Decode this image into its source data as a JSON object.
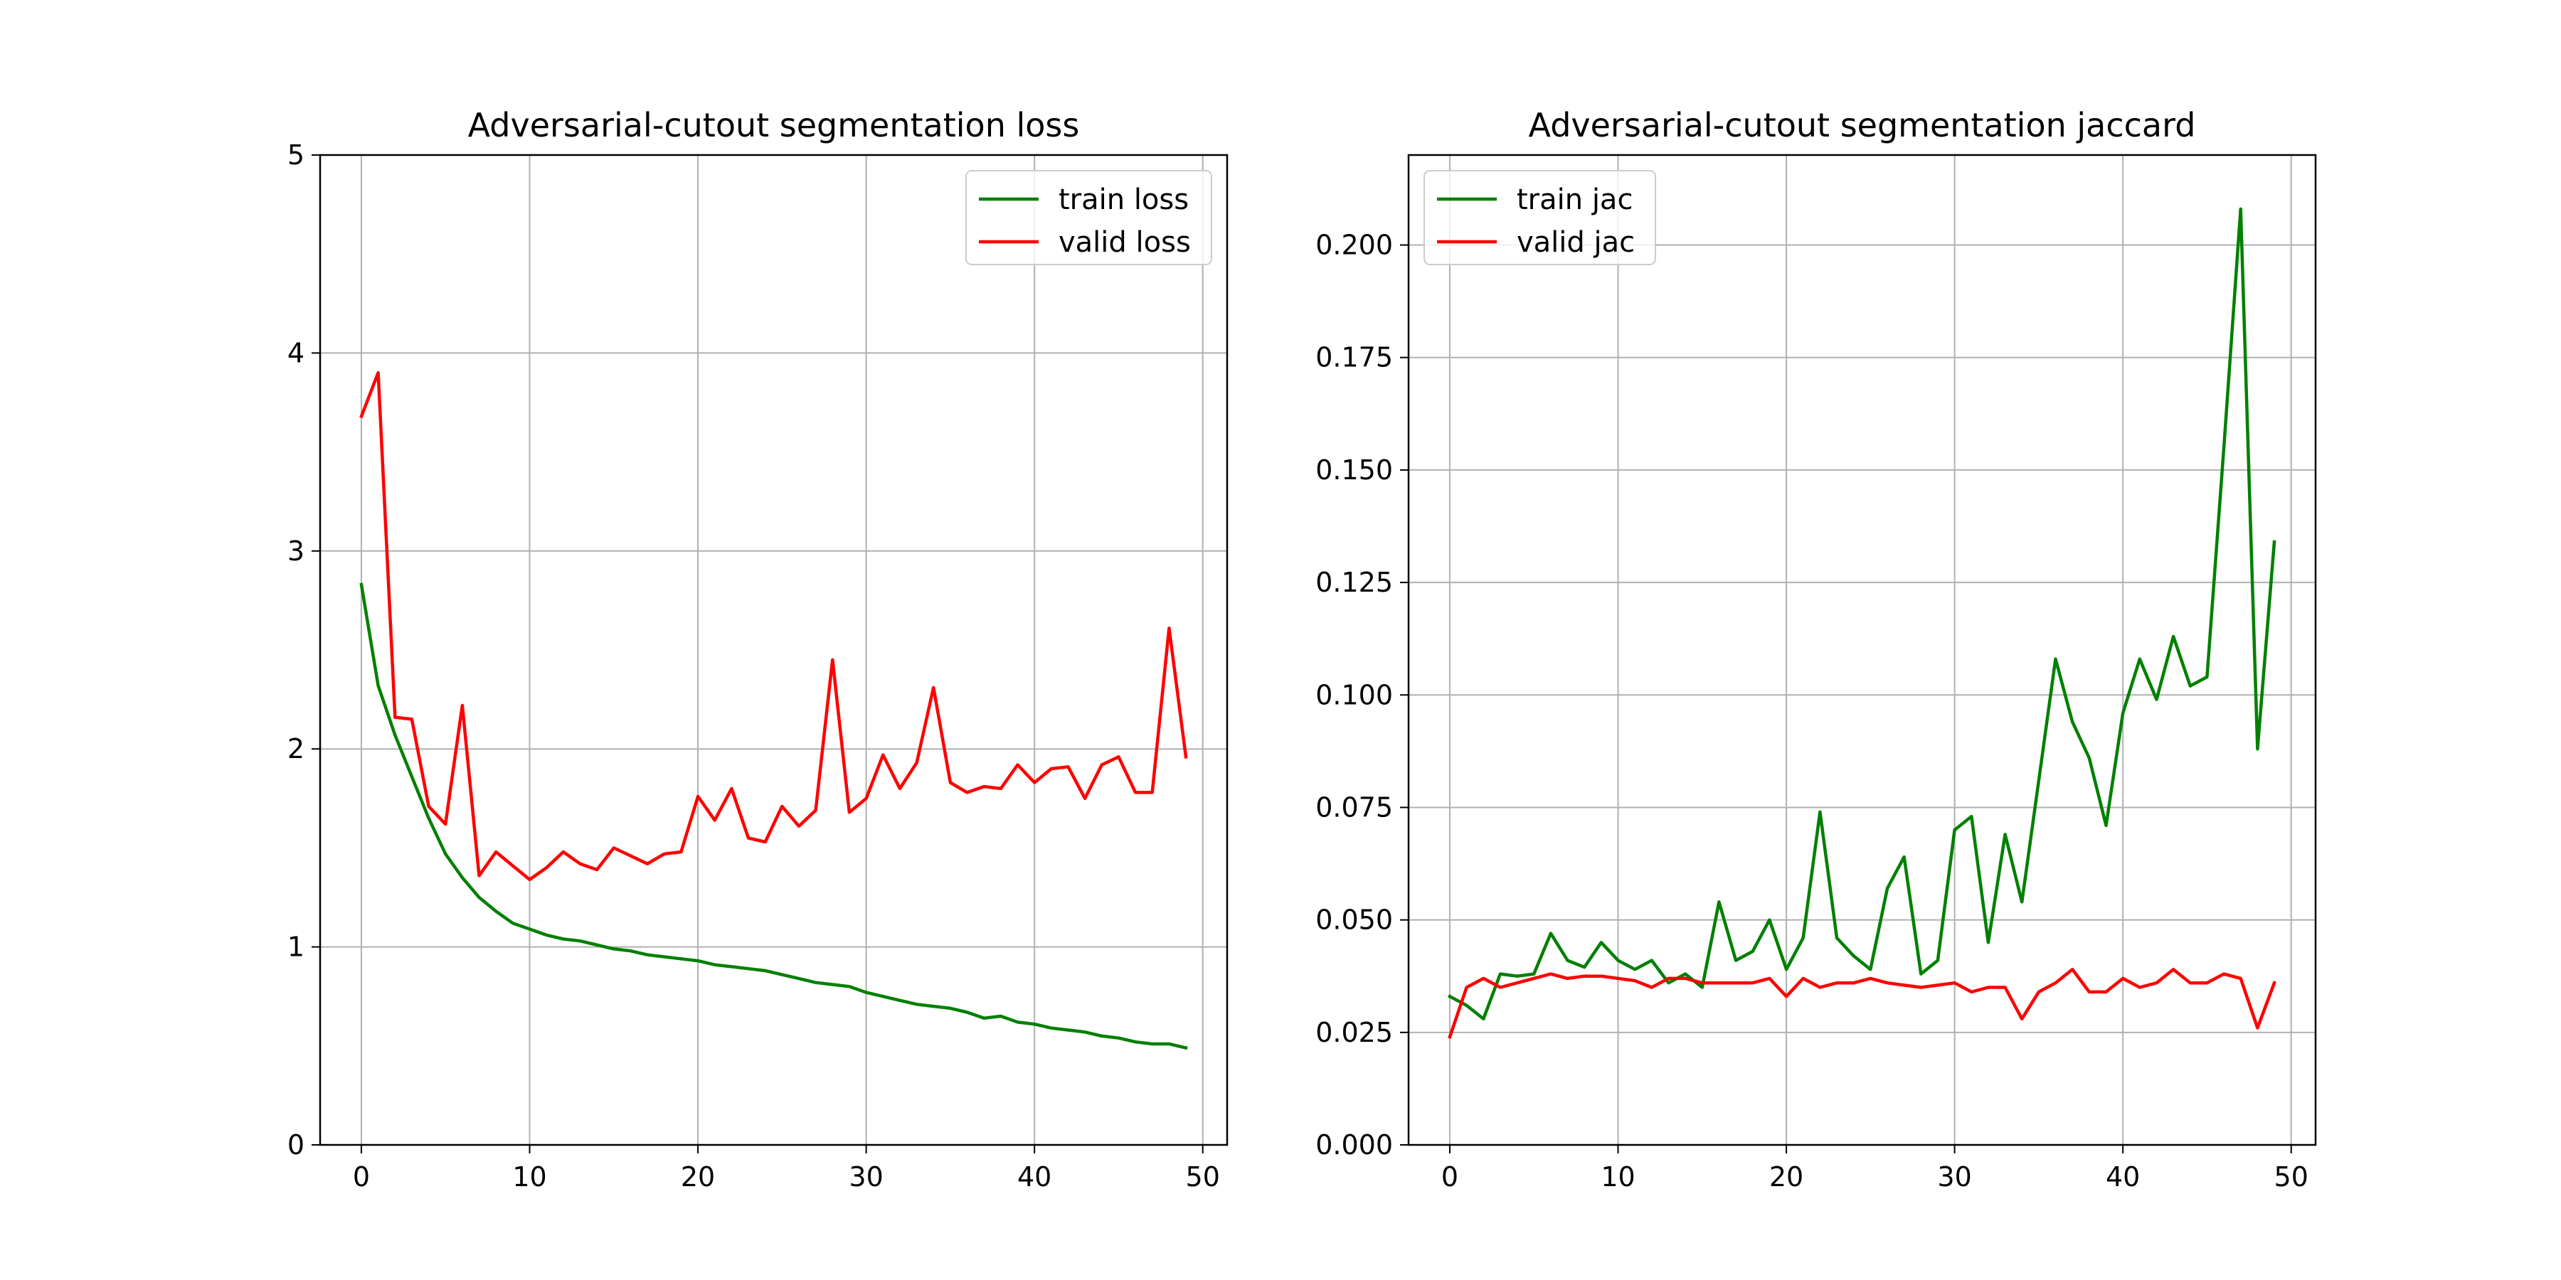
{
  "chart_data": [
    {
      "type": "line",
      "title": "Adversarial-cutout segmentation loss",
      "xlabel": "",
      "ylabel": "",
      "xlim": [
        -2.45,
        51.45
      ],
      "ylim": [
        0,
        5
      ],
      "xticks": [
        0,
        10,
        20,
        30,
        40,
        50
      ],
      "yticks": [
        0,
        1,
        2,
        3,
        4,
        5
      ],
      "ytick_labels": [
        "0",
        "1",
        "2",
        "3",
        "4",
        "5"
      ],
      "grid": true,
      "legend_position": "top-right",
      "series": [
        {
          "name": "train loss",
          "color": "#008000",
          "x": [
            0,
            1,
            2,
            3,
            4,
            5,
            6,
            7,
            8,
            9,
            10,
            11,
            12,
            13,
            14,
            15,
            16,
            17,
            18,
            19,
            20,
            21,
            22,
            23,
            24,
            25,
            26,
            27,
            28,
            29,
            30,
            31,
            32,
            33,
            34,
            35,
            36,
            37,
            38,
            39,
            40,
            41,
            42,
            43,
            44,
            45,
            46,
            47,
            48,
            49
          ],
          "y": [
            2.83,
            2.32,
            2.07,
            1.86,
            1.65,
            1.47,
            1.35,
            1.25,
            1.18,
            1.12,
            1.09,
            1.06,
            1.04,
            1.03,
            1.01,
            0.99,
            0.98,
            0.96,
            0.95,
            0.94,
            0.93,
            0.91,
            0.9,
            0.89,
            0.88,
            0.86,
            0.84,
            0.82,
            0.81,
            0.8,
            0.77,
            0.75,
            0.73,
            0.71,
            0.7,
            0.69,
            0.67,
            0.64,
            0.65,
            0.62,
            0.61,
            0.59,
            0.58,
            0.57,
            0.55,
            0.54,
            0.52,
            0.51,
            0.51,
            0.49
          ]
        },
        {
          "name": "valid loss",
          "color": "#ff0000",
          "x": [
            0,
            1,
            2,
            3,
            4,
            5,
            6,
            7,
            8,
            9,
            10,
            11,
            12,
            13,
            14,
            15,
            16,
            17,
            18,
            19,
            20,
            21,
            22,
            23,
            24,
            25,
            26,
            27,
            28,
            29,
            30,
            31,
            32,
            33,
            34,
            35,
            36,
            37,
            38,
            39,
            40,
            41,
            42,
            43,
            44,
            45,
            46,
            47,
            48,
            49
          ],
          "y": [
            3.68,
            3.9,
            2.16,
            2.15,
            1.71,
            1.62,
            2.22,
            1.36,
            1.48,
            1.41,
            1.34,
            1.4,
            1.48,
            1.42,
            1.39,
            1.5,
            1.46,
            1.42,
            1.47,
            1.48,
            1.76,
            1.64,
            1.8,
            1.55,
            1.53,
            1.71,
            1.61,
            1.69,
            2.45,
            1.68,
            1.75,
            1.97,
            1.8,
            1.93,
            2.31,
            1.83,
            1.78,
            1.81,
            1.8,
            1.92,
            1.83,
            1.9,
            1.91,
            1.75,
            1.92,
            1.96,
            1.78,
            1.78,
            2.61,
            1.96
          ]
        }
      ]
    },
    {
      "type": "line",
      "title": "Adversarial-cutout segmentation jaccard",
      "xlabel": "",
      "ylabel": "",
      "xlim": [
        -2.45,
        51.45
      ],
      "ylim": [
        0,
        0.22
      ],
      "xticks": [
        0,
        10,
        20,
        30,
        40,
        50
      ],
      "yticks": [
        0,
        0.025,
        0.05,
        0.075,
        0.1,
        0.125,
        0.15,
        0.175,
        0.2
      ],
      "ytick_labels": [
        "0.000",
        "0.025",
        "0.050",
        "0.075",
        "0.100",
        "0.125",
        "0.150",
        "0.175",
        "0.200"
      ],
      "grid": true,
      "legend_position": "top-left",
      "series": [
        {
          "name": "train jac",
          "color": "#008000",
          "x": [
            0,
            1,
            2,
            3,
            4,
            5,
            6,
            7,
            8,
            9,
            10,
            11,
            12,
            13,
            14,
            15,
            16,
            17,
            18,
            19,
            20,
            21,
            22,
            23,
            24,
            25,
            26,
            27,
            28,
            29,
            30,
            31,
            32,
            33,
            34,
            35,
            36,
            37,
            38,
            39,
            40,
            41,
            42,
            43,
            44,
            45,
            46,
            47,
            48,
            49
          ],
          "y": [
            0.033,
            0.031,
            0.028,
            0.038,
            0.0375,
            0.038,
            0.047,
            0.041,
            0.0395,
            0.045,
            0.041,
            0.039,
            0.041,
            0.036,
            0.038,
            0.035,
            0.054,
            0.041,
            0.043,
            0.05,
            0.039,
            0.046,
            0.074,
            0.046,
            0.042,
            0.039,
            0.057,
            0.064,
            0.038,
            0.041,
            0.07,
            0.073,
            0.045,
            0.069,
            0.054,
            0.081,
            0.108,
            0.094,
            0.086,
            0.071,
            0.096,
            0.108,
            0.099,
            0.113,
            0.102,
            0.104,
            0.155,
            0.208,
            0.088,
            0.134
          ]
        },
        {
          "name": "valid jac",
          "color": "#ff0000",
          "x": [
            0,
            1,
            2,
            3,
            4,
            5,
            6,
            7,
            8,
            9,
            10,
            11,
            12,
            13,
            14,
            15,
            16,
            17,
            18,
            19,
            20,
            21,
            22,
            23,
            24,
            25,
            26,
            27,
            28,
            29,
            30,
            31,
            32,
            33,
            34,
            35,
            36,
            37,
            38,
            39,
            40,
            41,
            42,
            43,
            44,
            45,
            46,
            47,
            48,
            49
          ],
          "y": [
            0.024,
            0.035,
            0.037,
            0.035,
            0.036,
            0.037,
            0.038,
            0.037,
            0.0375,
            0.0375,
            0.037,
            0.0365,
            0.035,
            0.037,
            0.037,
            0.036,
            0.036,
            0.036,
            0.036,
            0.037,
            0.033,
            0.037,
            0.035,
            0.036,
            0.036,
            0.037,
            0.036,
            0.0355,
            0.035,
            0.0355,
            0.036,
            0.034,
            0.035,
            0.035,
            0.028,
            0.034,
            0.036,
            0.039,
            0.034,
            0.034,
            0.037,
            0.035,
            0.036,
            0.039,
            0.036,
            0.036,
            0.038,
            0.037,
            0.026,
            0.036
          ]
        }
      ]
    }
  ]
}
